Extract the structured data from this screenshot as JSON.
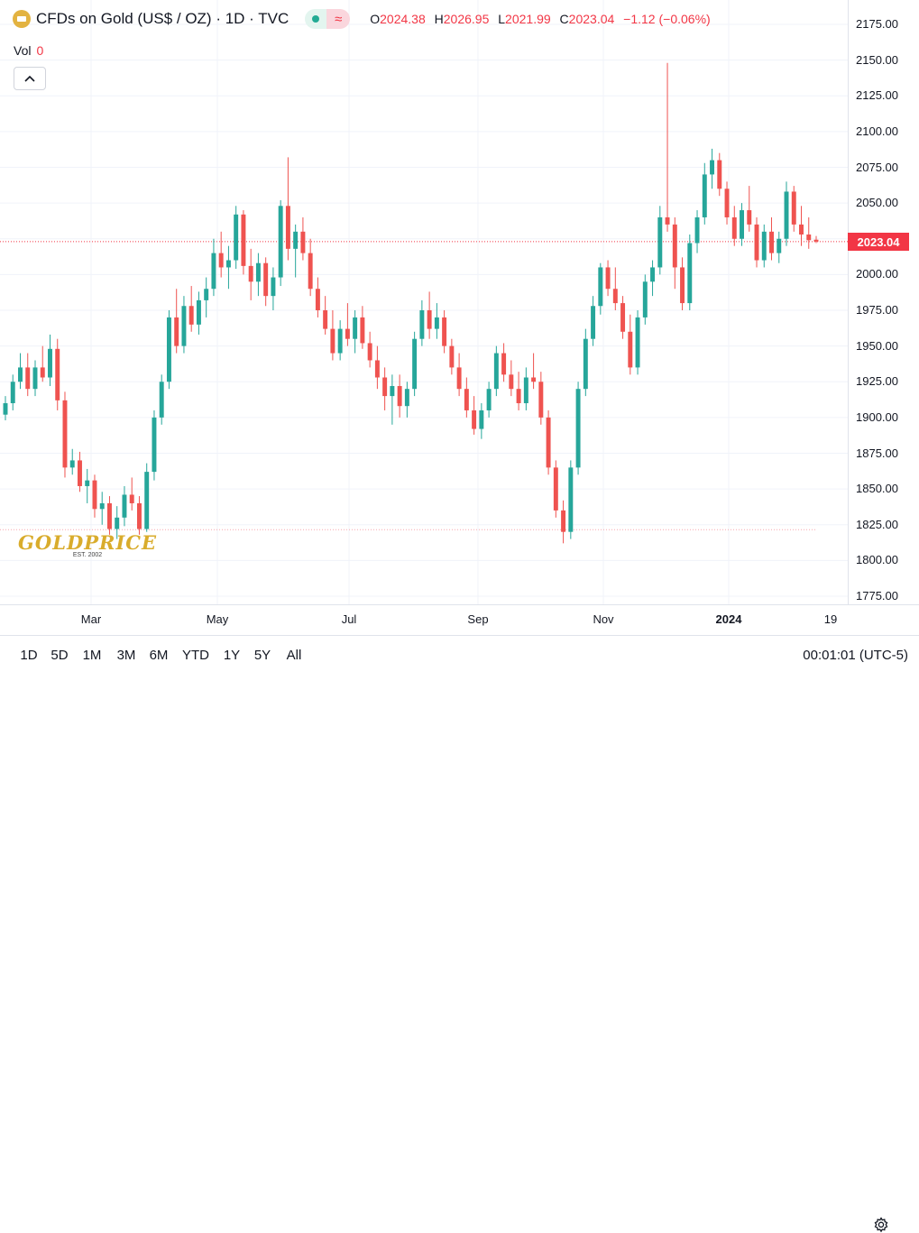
{
  "header": {
    "symbol": "CFDs on Gold (US$ / OZ) · 1D · TVC",
    "open_label": "O",
    "open_value": "2024.38",
    "high_label": "H",
    "high_value": "2026.95",
    "low_label": "L",
    "low_value": "2021.99",
    "close_label": "C",
    "close_value": "2023.04",
    "change": "−1.12 (−0.06%)",
    "status_dot_color": "#22ab94",
    "icon": "gold-bar-icon"
  },
  "volume": {
    "label": "Vol",
    "value": "0"
  },
  "collapse_icon": "chevron-up-icon",
  "watermark": {
    "text": "GOLDPRICE",
    "est": "EST. 2002"
  },
  "price_tag": "2023.04",
  "price_axis_labels": [
    "2175.00",
    "2150.00",
    "2125.00",
    "2100.00",
    "2075.00",
    "2050.00",
    "2025.00",
    "2000.00",
    "1975.00",
    "1950.00",
    "1925.00",
    "1900.00",
    "1875.00",
    "1850.00",
    "1825.00",
    "1800.00",
    "1775.00"
  ],
  "time_axis_labels": [
    {
      "text": "Mar",
      "bold": false
    },
    {
      "text": "May",
      "bold": false
    },
    {
      "text": "Jul",
      "bold": false
    },
    {
      "text": "Sep",
      "bold": false
    },
    {
      "text": "Nov",
      "bold": false
    },
    {
      "text": "2024",
      "bold": true
    },
    {
      "text": "19",
      "bold": false
    }
  ],
  "range_buttons": [
    "1D",
    "5D",
    "1M",
    "3M",
    "6M",
    "YTD",
    "1Y",
    "5Y",
    "All"
  ],
  "clock": "00:01:01 (UTC-5)",
  "settings_icon": "settings-gear-icon",
  "colors": {
    "up": "#26a69a",
    "down": "#ef5350",
    "accent": "#f23645"
  },
  "chart_data": {
    "type": "candlestick",
    "ylim": [
      1775,
      2175
    ],
    "reference_lines": [
      2023.04,
      1821.5
    ],
    "series": [
      {
        "values": [
          [
            1902,
            1915,
            1898,
            1910
          ],
          [
            1910,
            1930,
            1905,
            1925
          ],
          [
            1925,
            1945,
            1920,
            1935
          ],
          [
            1935,
            1945,
            1915,
            1920
          ],
          [
            1920,
            1940,
            1915,
            1935
          ],
          [
            1935,
            1950,
            1925,
            1928
          ],
          [
            1928,
            1958,
            1922,
            1948
          ],
          [
            1948,
            1955,
            1905,
            1912
          ],
          [
            1912,
            1918,
            1858,
            1865
          ],
          [
            1865,
            1878,
            1860,
            1870
          ],
          [
            1870,
            1876,
            1848,
            1852
          ],
          [
            1852,
            1864,
            1840,
            1856
          ],
          [
            1856,
            1860,
            1830,
            1836
          ],
          [
            1836,
            1848,
            1825,
            1840
          ],
          [
            1840,
            1845,
            1818,
            1822
          ],
          [
            1822,
            1838,
            1815,
            1830
          ],
          [
            1830,
            1852,
            1824,
            1846
          ],
          [
            1846,
            1858,
            1835,
            1840
          ],
          [
            1840,
            1845,
            1818,
            1822
          ],
          [
            1822,
            1868,
            1820,
            1862
          ],
          [
            1862,
            1905,
            1856,
            1900
          ],
          [
            1900,
            1930,
            1895,
            1925
          ],
          [
            1925,
            1975,
            1920,
            1970
          ],
          [
            1970,
            1990,
            1945,
            1950
          ],
          [
            1950,
            1985,
            1945,
            1978
          ],
          [
            1978,
            1992,
            1960,
            1965
          ],
          [
            1965,
            1988,
            1958,
            1982
          ],
          [
            1982,
            1998,
            1970,
            1990
          ],
          [
            1990,
            2025,
            1985,
            2015
          ],
          [
            2015,
            2030,
            1998,
            2005
          ],
          [
            2005,
            2020,
            1990,
            2010
          ],
          [
            2010,
            2048,
            2004,
            2042
          ],
          [
            2042,
            2045,
            2000,
            2006
          ],
          [
            2006,
            2018,
            1982,
            1995
          ],
          [
            1995,
            2015,
            1985,
            2008
          ],
          [
            2008,
            2012,
            1978,
            1985
          ],
          [
            1985,
            2005,
            1975,
            1998
          ],
          [
            1998,
            2052,
            1992,
            2048
          ],
          [
            2048,
            2082,
            2010,
            2018
          ],
          [
            2018,
            2035,
            1998,
            2030
          ],
          [
            2030,
            2040,
            2010,
            2015
          ],
          [
            2015,
            2025,
            1985,
            1990
          ],
          [
            1990,
            1998,
            1970,
            1975
          ],
          [
            1975,
            1985,
            1958,
            1962
          ],
          [
            1962,
            1975,
            1940,
            1945
          ],
          [
            1945,
            1968,
            1940,
            1962
          ],
          [
            1962,
            1980,
            1950,
            1955
          ],
          [
            1955,
            1975,
            1945,
            1970
          ],
          [
            1970,
            1978,
            1948,
            1952
          ],
          [
            1952,
            1960,
            1935,
            1940
          ],
          [
            1940,
            1950,
            1920,
            1928
          ],
          [
            1928,
            1935,
            1905,
            1915
          ],
          [
            1915,
            1930,
            1895,
            1922
          ],
          [
            1922,
            1930,
            1900,
            1908
          ],
          [
            1908,
            1925,
            1900,
            1920
          ],
          [
            1920,
            1960,
            1915,
            1955
          ],
          [
            1955,
            1982,
            1950,
            1975
          ],
          [
            1975,
            1988,
            1955,
            1962
          ],
          [
            1962,
            1980,
            1955,
            1970
          ],
          [
            1970,
            1975,
            1945,
            1950
          ],
          [
            1950,
            1955,
            1930,
            1935
          ],
          [
            1935,
            1945,
            1915,
            1920
          ],
          [
            1920,
            1928,
            1900,
            1905
          ],
          [
            1905,
            1915,
            1888,
            1892
          ],
          [
            1892,
            1910,
            1885,
            1905
          ],
          [
            1905,
            1925,
            1900,
            1920
          ],
          [
            1920,
            1950,
            1915,
            1945
          ],
          [
            1945,
            1952,
            1925,
            1930
          ],
          [
            1930,
            1940,
            1915,
            1920
          ],
          [
            1920,
            1932,
            1905,
            1910
          ],
          [
            1910,
            1935,
            1905,
            1928
          ],
          [
            1928,
            1945,
            1920,
            1925
          ],
          [
            1925,
            1932,
            1895,
            1900
          ],
          [
            1900,
            1905,
            1860,
            1865
          ],
          [
            1865,
            1870,
            1830,
            1835
          ],
          [
            1835,
            1842,
            1812,
            1820
          ],
          [
            1820,
            1870,
            1815,
            1865
          ],
          [
            1865,
            1925,
            1860,
            1920
          ],
          [
            1920,
            1962,
            1915,
            1955
          ],
          [
            1955,
            1985,
            1950,
            1978
          ],
          [
            1978,
            2008,
            1972,
            2005
          ],
          [
            2005,
            2010,
            1985,
            1990
          ],
          [
            1990,
            2005,
            1975,
            1980
          ],
          [
            1980,
            1985,
            1955,
            1960
          ],
          [
            1960,
            1972,
            1930,
            1935
          ],
          [
            1935,
            1975,
            1930,
            1970
          ],
          [
            1970,
            2000,
            1965,
            1995
          ],
          [
            1995,
            2010,
            1985,
            2005
          ],
          [
            2005,
            2048,
            2000,
            2040
          ],
          [
            2040,
            2148,
            2030,
            2035
          ],
          [
            2035,
            2040,
            1990,
            2005
          ],
          [
            2005,
            2012,
            1975,
            1980
          ],
          [
            1980,
            2028,
            1975,
            2022
          ],
          [
            2022,
            2045,
            2015,
            2040
          ],
          [
            2040,
            2078,
            2035,
            2070
          ],
          [
            2070,
            2088,
            2060,
            2080
          ],
          [
            2080,
            2085,
            2055,
            2060
          ],
          [
            2060,
            2065,
            2035,
            2040
          ],
          [
            2040,
            2048,
            2020,
            2025
          ],
          [
            2025,
            2050,
            2020,
            2045
          ],
          [
            2045,
            2062,
            2030,
            2035
          ],
          [
            2035,
            2040,
            2005,
            2010
          ],
          [
            2010,
            2035,
            2005,
            2030
          ],
          [
            2030,
            2040,
            2010,
            2015
          ],
          [
            2015,
            2030,
            2008,
            2025
          ],
          [
            2025,
            2065,
            2020,
            2058
          ],
          [
            2058,
            2062,
            2030,
            2035
          ],
          [
            2035,
            2048,
            2020,
            2028
          ],
          [
            2028,
            2040,
            2018,
            2024
          ],
          [
            2024.38,
            2026.95,
            2021.99,
            2023.04
          ]
        ]
      }
    ]
  }
}
